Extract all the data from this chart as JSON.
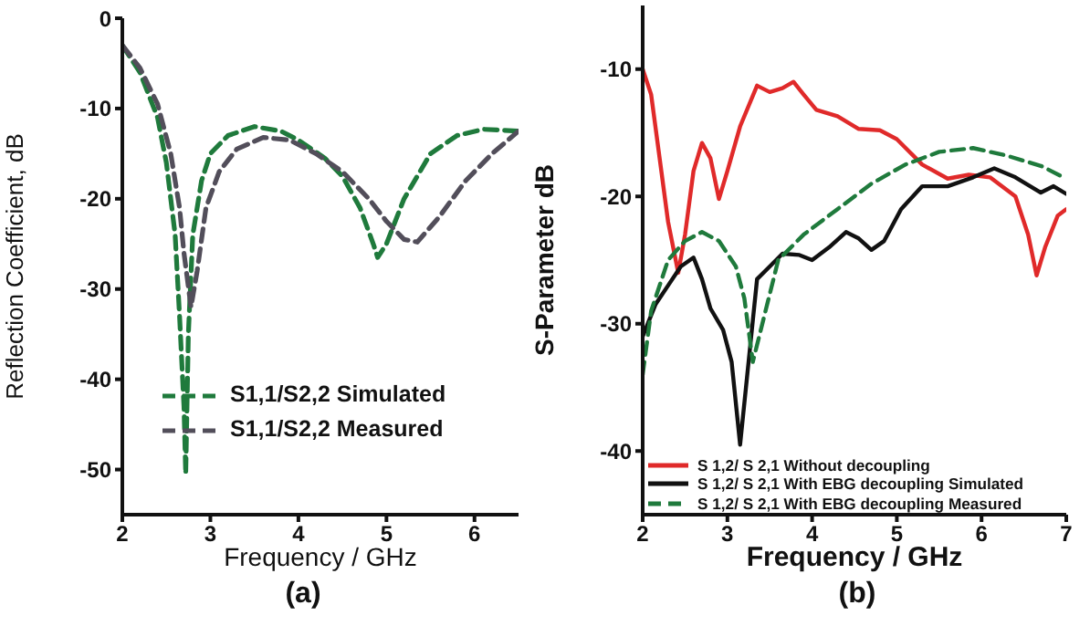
{
  "chart_data": [
    {
      "type": "line",
      "xlabel": "Frequency / GHz",
      "ylabel": "Reflection Coefficient, dB",
      "annotations": [
        "(a)"
      ],
      "xlim": [
        2,
        6.5
      ],
      "xticks": [
        2,
        3,
        4,
        5,
        6
      ],
      "ylim": [
        -55,
        0
      ],
      "yticks": [
        0,
        -10,
        -20,
        -30,
        -40,
        -50
      ],
      "grid": false,
      "legend": "bottom right",
      "line_style": "dashed",
      "marker": "none",
      "series": [
        {
          "name": "S1,1/S2,2 Simulated",
          "color": "#1f7a3c",
          "x": [
            2,
            2.2,
            2.4,
            2.5,
            2.6,
            2.65,
            2.7,
            2.72,
            2.75,
            2.8,
            2.9,
            3.0,
            3.2,
            3.5,
            3.8,
            4.0,
            4.3,
            4.5,
            4.7,
            4.85,
            4.9,
            5.0,
            5.2,
            5.5,
            5.8,
            6.1,
            6.5
          ],
          "values": [
            -3,
            -6,
            -11,
            -16,
            -24,
            -33,
            -43,
            -50.5,
            -35,
            -24,
            -18,
            -15,
            -13,
            -12,
            -12.5,
            -13.5,
            -15.5,
            -17.5,
            -21,
            -25,
            -26.5,
            -25,
            -20,
            -15,
            -13,
            -12.3,
            -12.5
          ]
        },
        {
          "name": "S1,1/S2,2 Measured",
          "color": "#524e5a",
          "x": [
            2,
            2.2,
            2.4,
            2.55,
            2.65,
            2.7,
            2.78,
            2.85,
            2.95,
            3.1,
            3.3,
            3.6,
            3.9,
            4.2,
            4.5,
            4.8,
            5.0,
            5.2,
            5.35,
            5.6,
            5.9,
            6.2,
            6.5
          ],
          "values": [
            -3,
            -5.5,
            -9.5,
            -15,
            -21,
            -26,
            -32,
            -28,
            -21,
            -17,
            -14.5,
            -13.2,
            -13.5,
            -15,
            -17,
            -20,
            -22.5,
            -24.5,
            -24.8,
            -22,
            -18,
            -15,
            -12.5
          ]
        }
      ]
    },
    {
      "type": "line",
      "xlabel": "Frequency / GHz",
      "ylabel": "S-Parameter  dB",
      "annotations": [
        "(b)"
      ],
      "xlim": [
        2,
        7
      ],
      "xticks": [
        2,
        3,
        4,
        5,
        6,
        7
      ],
      "ylim": [
        -45,
        -5
      ],
      "yticks": [
        -10,
        -20,
        -30,
        -40
      ],
      "grid": false,
      "legend": "bottom",
      "marker": "none",
      "series": [
        {
          "name": "S 1,2/ S 2,1 Without decoupling",
          "color": "#e02a2a",
          "line_style": "solid",
          "x": [
            2,
            2.1,
            2.2,
            2.3,
            2.42,
            2.5,
            2.6,
            2.7,
            2.8,
            2.9,
            3.0,
            3.15,
            3.35,
            3.5,
            3.65,
            3.78,
            3.9,
            4.05,
            4.3,
            4.55,
            4.8,
            5.0,
            5.3,
            5.6,
            5.85,
            6.1,
            6.4,
            6.55,
            6.65,
            6.75,
            6.9,
            7
          ],
          "values": [
            -10,
            -12,
            -17,
            -22,
            -26,
            -23,
            -18,
            -15.8,
            -17,
            -20.2,
            -18,
            -14.5,
            -11.3,
            -11.8,
            -11.5,
            -11,
            -12,
            -13.2,
            -13.7,
            -14.7,
            -14.8,
            -15.5,
            -17.5,
            -18.6,
            -18.3,
            -18.5,
            -20,
            -23,
            -26.2,
            -24,
            -21.5,
            -21
          ]
        },
        {
          "name": "S 1,2/ S 2,1 With EBG decoupling Simulated",
          "color": "#111111",
          "line_style": "solid",
          "x": [
            2,
            2.15,
            2.3,
            2.45,
            2.6,
            2.7,
            2.8,
            2.95,
            3.05,
            3.15,
            3.25,
            3.35,
            3.5,
            3.65,
            3.85,
            4.0,
            4.2,
            4.4,
            4.55,
            4.7,
            4.85,
            5.05,
            5.3,
            5.6,
            5.9,
            6.15,
            6.4,
            6.7,
            6.85,
            7
          ],
          "values": [
            -31,
            -28.5,
            -27,
            -25.5,
            -24.8,
            -26.5,
            -28.8,
            -30.5,
            -33,
            -39.5,
            -33,
            -26.5,
            -25.5,
            -24.5,
            -24.6,
            -25,
            -24,
            -22.8,
            -23.3,
            -24.2,
            -23.5,
            -21,
            -19.2,
            -19.2,
            -18.5,
            -17.8,
            -18.5,
            -19.7,
            -19.2,
            -19.8
          ]
        },
        {
          "name": "S 1,2/ S 2,1 With EBG decoupling Measured",
          "color": "#1f7a3c",
          "line_style": "dashed",
          "x": [
            2,
            2.1,
            2.3,
            2.5,
            2.7,
            2.9,
            3.1,
            3.2,
            3.3,
            3.45,
            3.6,
            3.9,
            4.3,
            4.7,
            5.1,
            5.5,
            5.9,
            6.3,
            6.7,
            7
          ],
          "values": [
            -34,
            -29,
            -25,
            -23.5,
            -22.8,
            -23.5,
            -25.5,
            -28,
            -33,
            -29,
            -25,
            -23,
            -21,
            -19,
            -17.5,
            -16.5,
            -16.2,
            -16.8,
            -17.6,
            -18.6
          ]
        }
      ]
    }
  ]
}
